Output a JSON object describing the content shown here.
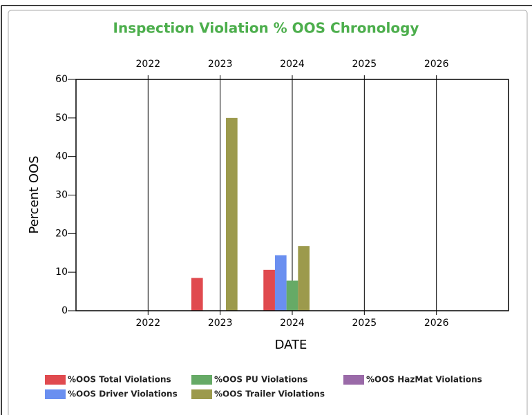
{
  "chart_data": {
    "type": "bar",
    "title": "Inspection Violation % OOS Chronology",
    "x_label": "DATE",
    "y_label": "Percent OOS",
    "categories": [
      "2022",
      "2023",
      "2024",
      "2025",
      "2026"
    ],
    "series": [
      {
        "name": "%OOS Total Violations",
        "color": "#e04a4f",
        "values": [
          null,
          8.5,
          10.6,
          null,
          null
        ]
      },
      {
        "name": "%OOS Driver Violations",
        "color": "#6a8ff0",
        "values": [
          null,
          null,
          14.4,
          null,
          null
        ]
      },
      {
        "name": "%OOS PU Violations",
        "color": "#66aa66",
        "values": [
          null,
          null,
          7.8,
          null,
          null
        ]
      },
      {
        "name": "%OOS Trailer Violations",
        "color": "#9c9a4c",
        "values": [
          null,
          50,
          16.8,
          null,
          null
        ]
      },
      {
        "name": "%OOS HazMat Violations",
        "color": "#9a6aa8",
        "values": [
          null,
          null,
          null,
          null,
          null
        ]
      }
    ],
    "ylim": [
      0,
      60
    ],
    "yticks": [
      0,
      10,
      20,
      30,
      40,
      50,
      60
    ],
    "grid": true,
    "legend": "bottom"
  }
}
